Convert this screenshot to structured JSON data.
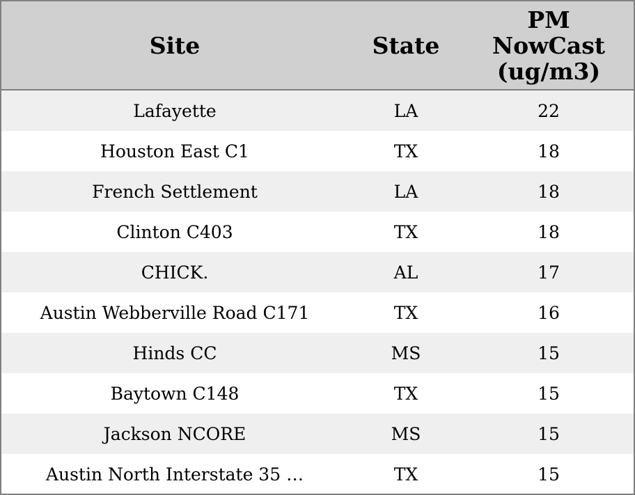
{
  "table": {
    "header": [
      "Site",
      "State",
      "PM NowCast (ug/m3)"
    ],
    "rows": [
      [
        "Lafayette",
        "LA",
        22
      ],
      [
        "Houston East C1",
        "TX",
        18
      ],
      [
        "French Settlement",
        "LA",
        18
      ],
      [
        "Clinton C403",
        "TX",
        18
      ],
      [
        "CHICK.",
        "AL",
        17
      ],
      [
        "Austin Webberville Road C171",
        "TX",
        16
      ],
      [
        "Hinds CC",
        "MS",
        15
      ],
      [
        "Baytown C148",
        "TX",
        15
      ],
      [
        "Jackson NCORE",
        "MS",
        15
      ],
      [
        "Austin North Interstate 35 …",
        "TX",
        15
      ]
    ]
  }
}
